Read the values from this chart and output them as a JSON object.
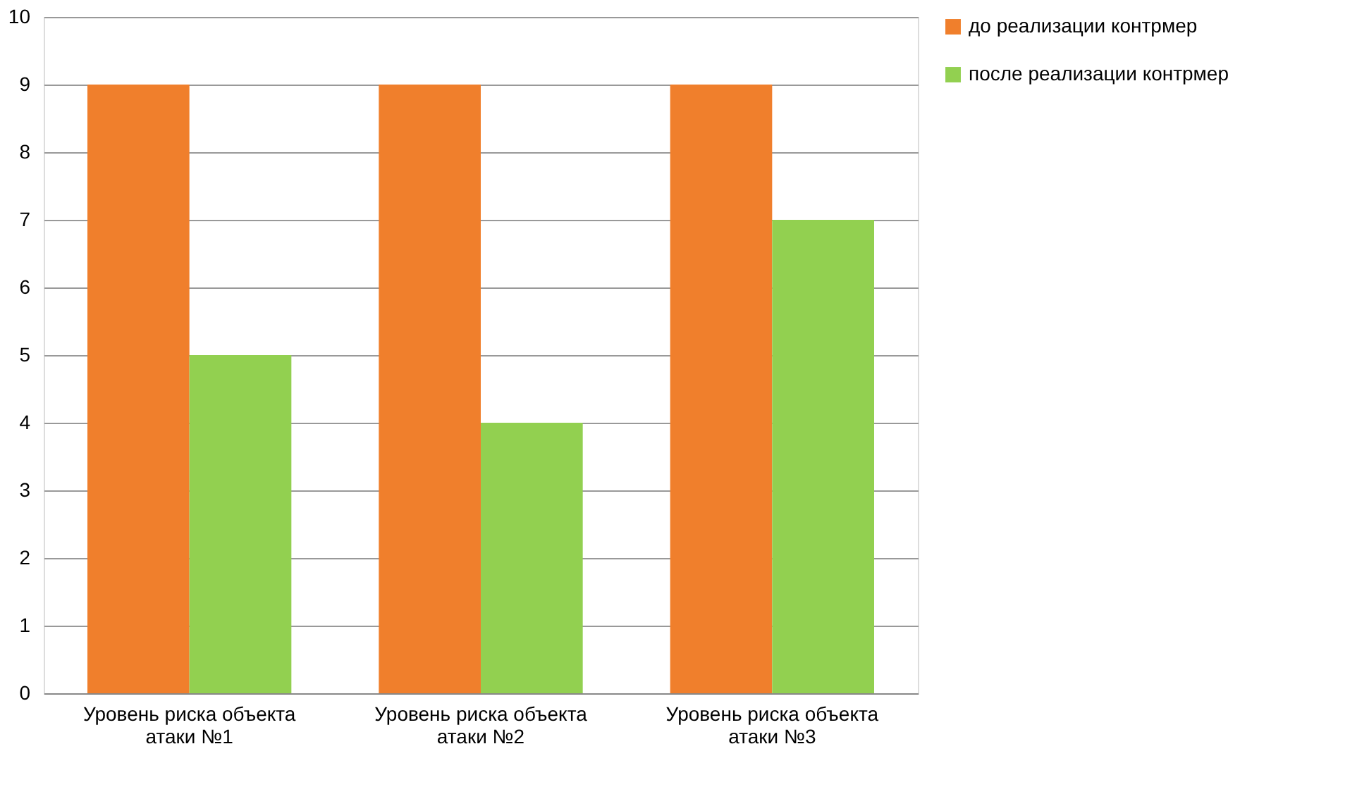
{
  "chart_data": {
    "type": "bar",
    "categories": [
      "Уровень риска объекта\nатаки №1",
      "Уровень риска объекта\nатаки №2",
      "Уровень риска объекта\nатаки №3"
    ],
    "series": [
      {
        "name": "до реализации контрмер",
        "color": "#f07f2c",
        "values": [
          9,
          9,
          9
        ]
      },
      {
        "name": "после реализации контрмер",
        "color": "#92d050",
        "values": [
          5,
          4,
          7
        ]
      }
    ],
    "ylim": [
      0,
      10
    ],
    "yticks": [
      0,
      1,
      2,
      3,
      4,
      5,
      6,
      7,
      8,
      9,
      10
    ],
    "grid": "y",
    "legend": "right"
  }
}
